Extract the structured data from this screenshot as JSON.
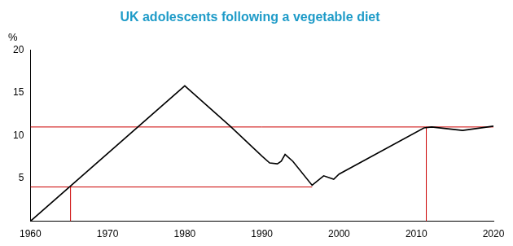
{
  "chart_data": {
    "type": "line",
    "title": "UK adolescents following a vegetable diet",
    "y_label": "%",
    "xlim": [
      1960,
      2020
    ],
    "xticks": [
      1960,
      1970,
      1980,
      1990,
      2000,
      2010,
      2020
    ],
    "ylim": [
      0,
      20
    ],
    "yticks": [
      5,
      10,
      15,
      20
    ],
    "grid": false,
    "series": [
      {
        "color": "#000000",
        "line_style": "solid",
        "marker": "none",
        "x": [
          1960,
          1980,
          1986,
          1990,
          1991,
          1992,
          1992.5,
          1993,
          1994,
          1996.5,
          1998,
          1999.3,
          2000,
          2011,
          2012,
          2016,
          2020
        ],
        "values": [
          0,
          15.8,
          11,
          7.6,
          6.8,
          6.7,
          7.0,
          7.8,
          7.0,
          4.2,
          5.3,
          4.9,
          5.5,
          10.9,
          11,
          10.6,
          11.1
        ]
      },
      {
        "color": "#cc0000",
        "line_style": "solid",
        "marker": "none",
        "x": [
          1960,
          2020
        ],
        "values": [
          11,
          11
        ]
      },
      {
        "color": "#cc0000",
        "line_style": "solid",
        "marker": "none",
        "x": [
          1960,
          1996.5
        ],
        "values": [
          4,
          4
        ]
      },
      {
        "color": "#cc0000",
        "line_style": "solid",
        "marker": "none",
        "x": [
          1965.2,
          1965.2
        ],
        "values": [
          0,
          4
        ]
      },
      {
        "color": "#cc0000",
        "line_style": "solid",
        "marker": "none",
        "x": [
          2011.3,
          2011.3
        ],
        "values": [
          0,
          11
        ]
      }
    ]
  }
}
